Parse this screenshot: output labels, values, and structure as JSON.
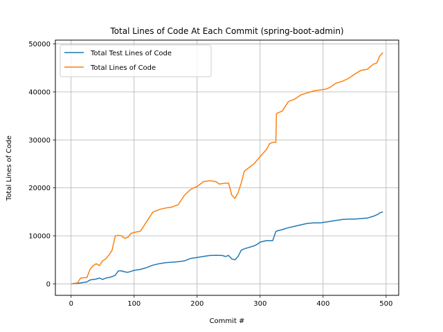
{
  "chart_data": {
    "type": "line",
    "title": "Total Lines of Code At Each Commit (spring-boot-admin)",
    "xlabel": "Commit #",
    "ylabel": "Total Lines of Code",
    "xlim": [
      -25,
      520
    ],
    "ylim": [
      -2400,
      50800
    ],
    "xticks": [
      0,
      100,
      200,
      300,
      400,
      500
    ],
    "yticks": [
      0,
      10000,
      20000,
      30000,
      40000,
      50000
    ],
    "grid": true,
    "legend_position": "top-left",
    "series": [
      {
        "name": "Total Test Lines of Code",
        "color": "#1f77b4",
        "x": [
          0,
          10,
          15,
          25,
          30,
          40,
          45,
          50,
          55,
          60,
          65,
          70,
          75,
          80,
          85,
          90,
          95,
          100,
          110,
          120,
          130,
          140,
          150,
          160,
          170,
          180,
          190,
          200,
          210,
          220,
          230,
          240,
          245,
          250,
          255,
          260,
          265,
          270,
          275,
          280,
          290,
          295,
          300,
          310,
          320,
          325,
          326,
          335,
          345,
          355,
          365,
          375,
          385,
          395,
          410,
          420,
          430,
          440,
          450,
          460,
          470,
          480,
          487,
          490,
          495
        ],
        "y": [
          0,
          100,
          200,
          400,
          800,
          1000,
          1200,
          900,
          1200,
          1300,
          1500,
          1800,
          2700,
          2700,
          2500,
          2400,
          2600,
          2800,
          3000,
          3400,
          3900,
          4200,
          4400,
          4500,
          4600,
          4800,
          5300,
          5500,
          5700,
          5900,
          5950,
          5900,
          5700,
          5900,
          5200,
          5000,
          5700,
          7000,
          7300,
          7500,
          7900,
          8200,
          8700,
          9000,
          9000,
          10900,
          11000,
          11300,
          11700,
          12000,
          12300,
          12600,
          12700,
          12700,
          13000,
          13200,
          13400,
          13500,
          13500,
          13600,
          13700,
          14100,
          14500,
          14800,
          15000
        ]
      },
      {
        "name": "Total Lines of Code",
        "color": "#ff7f0e",
        "x": [
          0,
          10,
          15,
          25,
          30,
          35,
          40,
          45,
          50,
          55,
          60,
          65,
          70,
          75,
          80,
          85,
          90,
          95,
          100,
          110,
          120,
          125,
          130,
          135,
          140,
          150,
          160,
          170,
          180,
          190,
          195,
          200,
          210,
          220,
          230,
          235,
          240,
          245,
          250,
          255,
          260,
          265,
          270,
          275,
          280,
          290,
          300,
          310,
          315,
          320,
          325,
          326,
          335,
          345,
          355,
          365,
          375,
          385,
          395,
          405,
          410,
          420,
          430,
          440,
          450,
          460,
          470,
          480,
          485,
          490,
          495
        ],
        "y": [
          0,
          200,
          1200,
          1300,
          3000,
          3800,
          4200,
          3800,
          4800,
          5200,
          6000,
          7000,
          10000,
          10100,
          10000,
          9500,
          9700,
          10500,
          10700,
          11000,
          13000,
          14000,
          15000,
          15200,
          15500,
          15800,
          16000,
          16500,
          18500,
          19700,
          20000,
          20300,
          21300,
          21500,
          21300,
          20800,
          20900,
          21000,
          21000,
          18500,
          17800,
          19000,
          21000,
          23500,
          24000,
          25000,
          26500,
          28000,
          29200,
          29500,
          29500,
          35500,
          36000,
          38000,
          38500,
          39400,
          39800,
          40200,
          40400,
          40600,
          40900,
          41800,
          42200,
          42800,
          43700,
          44500,
          44700,
          45800,
          46000,
          47500,
          48200
        ]
      }
    ]
  }
}
